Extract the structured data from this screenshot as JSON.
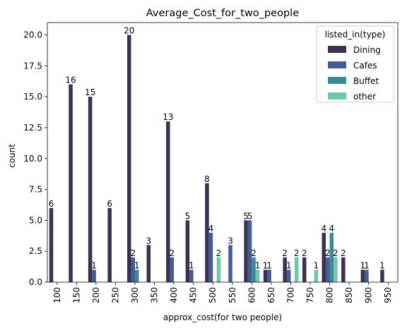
{
  "chart_data": {
    "type": "bar",
    "title": "Average_Cost_for_two_people",
    "xlabel": "approx_cost(for two people)",
    "ylabel": "count",
    "ylim": [
      0,
      21
    ],
    "yticks": [
      "0.0",
      "2.5",
      "5.0",
      "7.5",
      "10.0",
      "12.5",
      "15.0",
      "17.5",
      "20.0"
    ],
    "categories": [
      "100",
      "150",
      "200",
      "250",
      "300",
      "350",
      "400",
      "450",
      "500",
      "550",
      "600",
      "650",
      "700",
      "750",
      "800",
      "850",
      "900",
      "950"
    ],
    "legend": {
      "title": "listed_in(type)",
      "position": "top-right"
    },
    "series": [
      {
        "name": "Dining",
        "color": "#3a3250",
        "values": [
          6,
          16,
          15,
          6,
          20,
          3,
          13,
          5,
          8,
          null,
          5,
          1,
          2,
          2,
          4,
          2,
          1,
          1
        ]
      },
      {
        "name": "Cafes",
        "color": "#455c94",
        "values": [
          null,
          null,
          1,
          null,
          2,
          null,
          2,
          1,
          4,
          3,
          5,
          1,
          1,
          null,
          2,
          null,
          1,
          null
        ]
      },
      {
        "name": "Buffet",
        "color": "#3a8a98",
        "values": [
          null,
          null,
          null,
          null,
          1,
          null,
          null,
          null,
          null,
          null,
          2,
          null,
          null,
          null,
          4,
          null,
          null,
          null
        ]
      },
      {
        "name": "other",
        "color": "#6ec7aa",
        "values": [
          null,
          null,
          null,
          null,
          null,
          null,
          null,
          null,
          2,
          null,
          1,
          null,
          2,
          1,
          2,
          null,
          null,
          null
        ]
      }
    ]
  }
}
